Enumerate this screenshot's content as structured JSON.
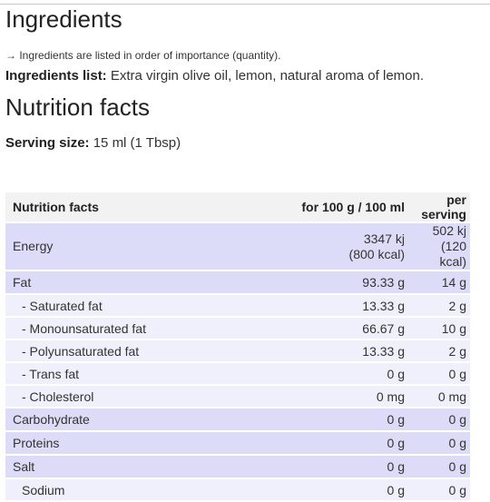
{
  "ingredients": {
    "heading": "Ingredients",
    "note": "→ Ingredients are listed in order of importance (quantity).",
    "list_label": "Ingredients list:",
    "list_value": " Extra virgin olive oil, lemon, natural aroma of lemon."
  },
  "nutrition": {
    "heading": "Nutrition facts",
    "serving_label": "Serving size:",
    "serving_value": " 15 ml (1 Tbsp)",
    "table": {
      "headers": [
        "Nutrition facts",
        "for 100 g / 100 ml",
        "per serving"
      ],
      "energy": {
        "name": "Energy",
        "per100_kj": "3347 kj",
        "per100_kcal": "(800 kcal)",
        "serving_kj": "502 kj",
        "serving_kcal": "(120 kcal)"
      },
      "rows": [
        {
          "name": "Fat",
          "per100": "93.33 g",
          "serving": "14 g"
        },
        {
          "name": "- Saturated fat",
          "per100": "13.33 g",
          "serving": "2 g"
        },
        {
          "name": "- Monounsaturated fat",
          "per100": "66.67 g",
          "serving": "10 g"
        },
        {
          "name": "- Polyunsaturated fat",
          "per100": "13.33 g",
          "serving": "2 g"
        },
        {
          "name": "- Trans fat",
          "per100": "0 g",
          "serving": "0 g"
        },
        {
          "name": "- Cholesterol",
          "per100": "0 mg",
          "serving": "0 mg"
        },
        {
          "name": "Carbohydrate",
          "per100": "0 g",
          "serving": "0 g"
        },
        {
          "name": "Proteins",
          "per100": "0 g",
          "serving": "0 g"
        },
        {
          "name": "Salt",
          "per100": "0 g",
          "serving": "0 g"
        },
        {
          "name": "Sodium",
          "per100": "0 g",
          "serving": "0 g"
        }
      ]
    }
  }
}
